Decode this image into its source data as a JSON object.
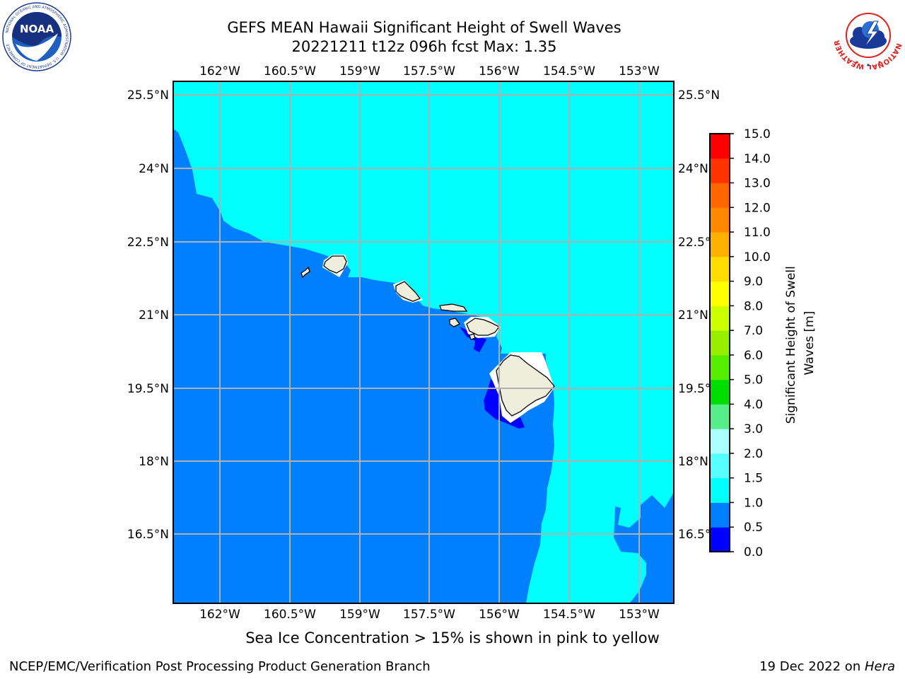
{
  "header": {
    "title_line1": "GEFS MEAN Hawaii Significant Height of Swell Waves",
    "title_line2": "20221211 t12z 096h fcst    Max: 1.35"
  },
  "logos": {
    "left": "NOAA",
    "left_ring_text": "NATIONAL OCEANIC AND ATMOSPHERIC ADMINISTRATION · U.S. DEPARTMENT OF COMMERCE",
    "right_ring_text": "NATIONAL WEATHER SERVICE"
  },
  "map": {
    "longitude_labels": [
      "162°W",
      "160.5°W",
      "159°W",
      "157.5°W",
      "156°W",
      "154.5°W",
      "153°W"
    ],
    "latitude_labels": [
      "25.5°N",
      "24°N",
      "22.5°N",
      "21°N",
      "19.5°N",
      "18°N",
      "16.5°N"
    ],
    "colors": {
      "ocean_0_05": "#0000ff",
      "ocean_05_1": "#007fff",
      "ocean_1_15": "#00ffff",
      "land": "#efeedc",
      "grid": "#b0b0b0"
    }
  },
  "colorbar": {
    "label_line1": "Significant Height of Swell",
    "label_line2": "Waves [m]",
    "levels": [
      "0.0",
      "0.5",
      "1.0",
      "1.5",
      "2.0",
      "3.0",
      "4.0",
      "5.0",
      "6.0",
      "7.0",
      "8.0",
      "9.0",
      "10.0",
      "11.0",
      "12.0",
      "13.0",
      "14.0",
      "15.0"
    ],
    "colors": [
      "#0000ff",
      "#007fff",
      "#00ffff",
      "#55ffff",
      "#aaffff",
      "#55ee88",
      "#00dd00",
      "#55ee00",
      "#99ee00",
      "#ccff00",
      "#ffff00",
      "#ffdd00",
      "#ffb000",
      "#ff8800",
      "#ff6600",
      "#ff3300",
      "#ff0000"
    ]
  },
  "ice_caption": "Sea Ice Concentration > 15% is shown in pink to yellow",
  "footer": {
    "left": "NCEP/EMC/Verification Post Processing Product Generation Branch",
    "right_prefix": "19 Dec 2022 on ",
    "right_host": "Hera"
  }
}
